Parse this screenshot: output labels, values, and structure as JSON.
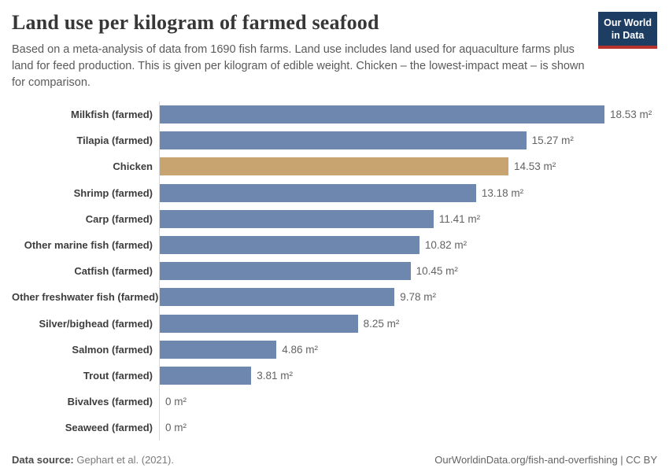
{
  "header": {
    "title": "Land use per kilogram of farmed seafood",
    "subtitle": "Based on a meta-analysis of data from 1690 fish farms. Land use includes land used for aquaculture farms plus land for feed production. This is given per kilogram of edible weight. Chicken – the lowest-impact meat – is shown for comparison.",
    "logo": {
      "line1": "Our World",
      "line2": "in Data",
      "bg_color": "#1d3d63",
      "accent_color": "#b5332c"
    }
  },
  "chart_data": {
    "type": "bar",
    "orientation": "horizontal",
    "title": "Land use per kilogram of farmed seafood",
    "unit": "m²",
    "categories": [
      "Milkfish (farmed)",
      "Tilapia (farmed)",
      "Chicken",
      "Shrimp (farmed)",
      "Carp (farmed)",
      "Other marine fish (farmed)",
      "Catfish (farmed)",
      "Other freshwater fish (farmed)",
      "Silver/bighead (farmed)",
      "Salmon (farmed)",
      "Trout (farmed)",
      "Bivalves (farmed)",
      "Seaweed (farmed)"
    ],
    "values": [
      18.53,
      15.27,
      14.53,
      13.18,
      11.41,
      10.82,
      10.45,
      9.78,
      8.25,
      4.86,
      3.81,
      0,
      0
    ],
    "value_labels": [
      "18.53 m²",
      "15.27 m²",
      "14.53 m²",
      "13.18 m²",
      "11.41 m²",
      "10.82 m²",
      "10.45 m²",
      "9.78 m²",
      "8.25 m²",
      "4.86 m²",
      "3.81 m²",
      "0 m²",
      "0 m²"
    ],
    "highlight_index": 2,
    "bar_color": "#6d87ae",
    "highlight_color": "#c8a470",
    "axis_line_color": "#d9d9d9",
    "xlim": [
      0,
      18.53
    ],
    "grid": false,
    "legend": "none"
  },
  "footer": {
    "source_label": "Data source:",
    "source_value": " Gephart et al. (2021).",
    "link_text": "OurWorldinData.org/fish-and-overfishing | CC BY"
  }
}
